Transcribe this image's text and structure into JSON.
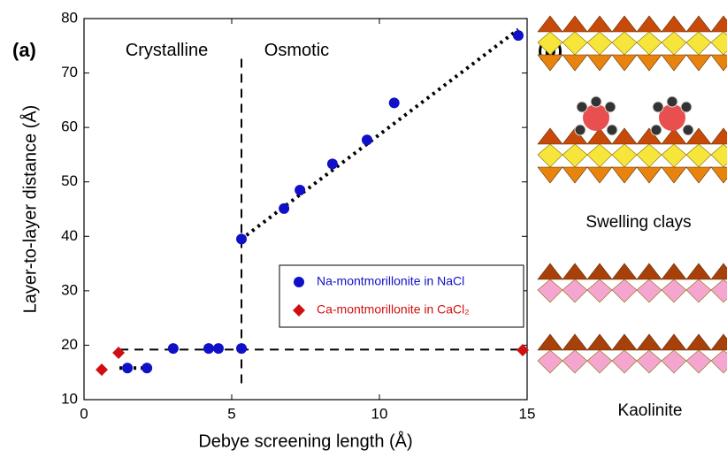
{
  "chart_data": {
    "type": "scatter",
    "panel_label": "(a)",
    "xlabel": "Debye screening length  (Å)",
    "ylabel": "Layer-to-layer distance  (Å)",
    "xlim": [
      0,
      15
    ],
    "ylim": [
      10,
      80
    ],
    "xticks": [
      0,
      5,
      10,
      15
    ],
    "yticks": [
      10,
      20,
      30,
      40,
      50,
      60,
      70,
      80
    ],
    "annotations": [
      {
        "text": "Crystalline",
        "x": 2.8,
        "y": 74
      },
      {
        "text": "Osmotic",
        "x": 7.2,
        "y": 74
      }
    ],
    "legend": "lower right",
    "series": [
      {
        "name": "Na-montmorillonite in NaCl",
        "color": "#1010c8",
        "marker": "circle",
        "x": [
          1.47,
          2.13,
          3.02,
          4.22,
          4.55,
          5.33,
          5.33,
          6.77,
          7.31,
          8.41,
          9.58,
          10.5,
          14.7
        ],
        "values": [
          15.8,
          15.8,
          19.4,
          19.4,
          19.4,
          19.4,
          39.5,
          45.1,
          48.5,
          53.3,
          57.7,
          64.5,
          76.9
        ]
      },
      {
        "name": "Ca-montmorillonite in CaCl₂",
        "color": "#d01010",
        "marker": "diamond",
        "x": [
          0.6,
          1.17,
          14.85
        ],
        "values": [
          15.5,
          18.6,
          19.1
        ]
      }
    ],
    "guides": [
      {
        "style": "dotted",
        "x": [
          1.2,
          2.4
        ],
        "values": [
          15.8,
          15.8
        ]
      },
      {
        "style": "dotted",
        "x": [
          5.5,
          14.7
        ],
        "values": [
          40.2,
          78
        ]
      },
      {
        "style": "dashed",
        "x": [
          1.2,
          15
        ],
        "values": [
          19.2,
          19.2
        ]
      },
      {
        "style": "dashed",
        "x": [
          5.33,
          5.33
        ],
        "values": [
          13,
          73.5
        ]
      }
    ]
  },
  "panel_b": {
    "label": "(b)",
    "captions": [
      "Swelling clays",
      "Kaolinite"
    ]
  }
}
